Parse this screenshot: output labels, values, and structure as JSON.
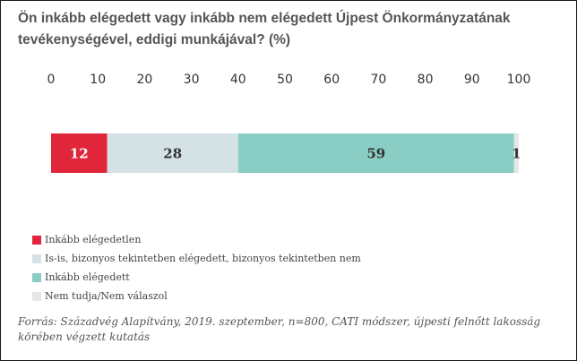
{
  "title": "Ön inkább elégedett vagy inkább nem elégedett Újpest Önkormányzatának tevékenységével, eddigi munkájával? (%)",
  "source": "Forrás: Századvég Alapítvány, 2019. szeptember, n=800, CATI módszer, újpesti felnőtt lakosság körében végzett kutatás",
  "chart_data": {
    "type": "bar",
    "orientation": "horizontal",
    "stacked": true,
    "title": "Ön inkább elégedett vagy inkább nem elégedett Újpest Önkormányzatának tevékenységével, eddigi munkájával? (%)",
    "xlim": [
      0,
      100
    ],
    "x_ticks": [
      "0",
      "10",
      "20",
      "30",
      "40",
      "50",
      "60",
      "70",
      "80",
      "90",
      "100"
    ],
    "legend_position": "bottom-left",
    "grid": false,
    "series": [
      {
        "name": "Inkább elégedetlen",
        "value": 12,
        "label": "12",
        "color": "#e0263a",
        "label_color": "#ffffff"
      },
      {
        "name": "Is-is, bizonyos tekintetben elégedett, bizonyos tekintetben nem",
        "value": 28,
        "label": "28",
        "color": "#d4e1e5",
        "label_color": "#333333"
      },
      {
        "name": "Inkább elégedett",
        "value": 59,
        "label": "59",
        "color": "#89cdc4",
        "label_color": "#333333"
      },
      {
        "name": "Nem tudja/Nem válaszol",
        "value": 1,
        "label": "1",
        "color": "#e6e6e6",
        "label_color": "#333333"
      }
    ]
  }
}
